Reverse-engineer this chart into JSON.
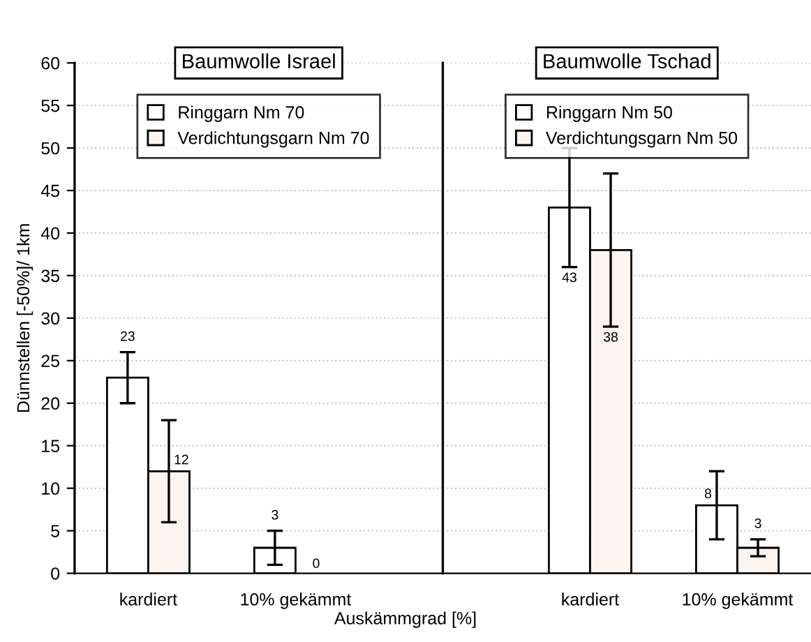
{
  "chart_data": [
    {
      "type": "bar",
      "title": "Baumwolle Israel",
      "xlabel": "Auskämmgrad [%]",
      "ylabel": "Dünnstellen [-50%]/ 1km",
      "categories": [
        "kardiert",
        "10% gekämmt"
      ],
      "series": [
        {
          "name": "Ringgarn Nm 70",
          "color": "#ffffff",
          "values": [
            23,
            3
          ],
          "errors": [
            [
              20,
              26
            ],
            [
              1,
              5
            ]
          ]
        },
        {
          "name": "Verdichtungsgarn Nm 70",
          "color": "#fcf4ee",
          "values": [
            12,
            0
          ],
          "errors": [
            [
              6,
              18
            ],
            null
          ]
        }
      ],
      "ylim": [
        0,
        60
      ],
      "yticks": [
        0,
        5,
        10,
        15,
        20,
        25,
        30,
        35,
        40,
        45,
        50,
        55,
        60
      ],
      "grid": "y",
      "legend": "top",
      "data_labels": true
    },
    {
      "type": "bar",
      "title": "Baumwolle Tschad",
      "categories": [
        "kardiert",
        "10% gekämmt"
      ],
      "series": [
        {
          "name": "Ringgarn Nm 50",
          "color": "#ffffff",
          "values": [
            43,
            8
          ],
          "errors": [
            [
              36,
              50
            ],
            [
              4,
              12
            ]
          ]
        },
        {
          "name": "Verdichtungsgarn Nm 50",
          "color": "#fcf4ee",
          "values": [
            38,
            3
          ],
          "errors": [
            [
              29,
              47
            ],
            [
              2,
              4
            ]
          ]
        }
      ],
      "ylim": [
        0,
        60
      ],
      "yticks": [
        0,
        5,
        10,
        15,
        20,
        25,
        30,
        35,
        40,
        45,
        50,
        55,
        60
      ],
      "grid": "y",
      "legend": "top",
      "data_labels": true,
      "tick_labels": "x"
    }
  ]
}
